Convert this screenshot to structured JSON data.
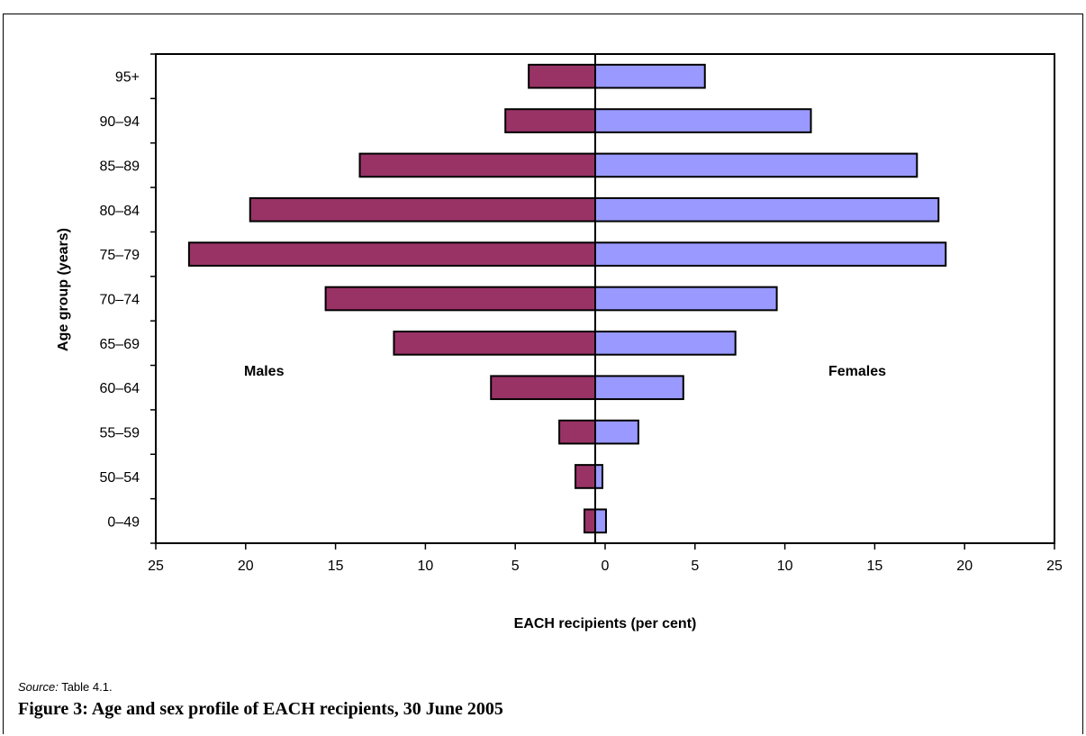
{
  "chart_data": {
    "type": "bar",
    "orientation": "horizontal",
    "layout": "population-pyramid",
    "categories": [
      "0–49",
      "50–54",
      "55–59",
      "60–64",
      "65–69",
      "70–74",
      "75–79",
      "80–84",
      "85–89",
      "90–94",
      "95+"
    ],
    "series": [
      {
        "name": "Males",
        "color": "#993366",
        "side": "left",
        "values": [
          0.6,
          1.1,
          2.0,
          5.8,
          11.2,
          15.0,
          22.6,
          19.2,
          13.1,
          5.0,
          3.7
        ]
      },
      {
        "name": "Females",
        "color": "#9999ff",
        "side": "right",
        "values": [
          0.6,
          0.4,
          2.4,
          4.9,
          7.8,
          10.1,
          19.5,
          19.1,
          17.9,
          12.0,
          6.1
        ]
      }
    ],
    "xlabel": "EACH recipients (per cent)",
    "ylabel": "Age group (years)",
    "xlim": [
      -25,
      25
    ],
    "xticks": [
      25,
      20,
      15,
      10,
      5,
      0,
      5,
      10,
      15,
      20,
      25
    ],
    "grid": false
  },
  "source": {
    "label": "Source:",
    "text": " Table 4.1."
  },
  "caption": "Figure 3: Age and sex profile of EACH recipients, 30 June 2005"
}
